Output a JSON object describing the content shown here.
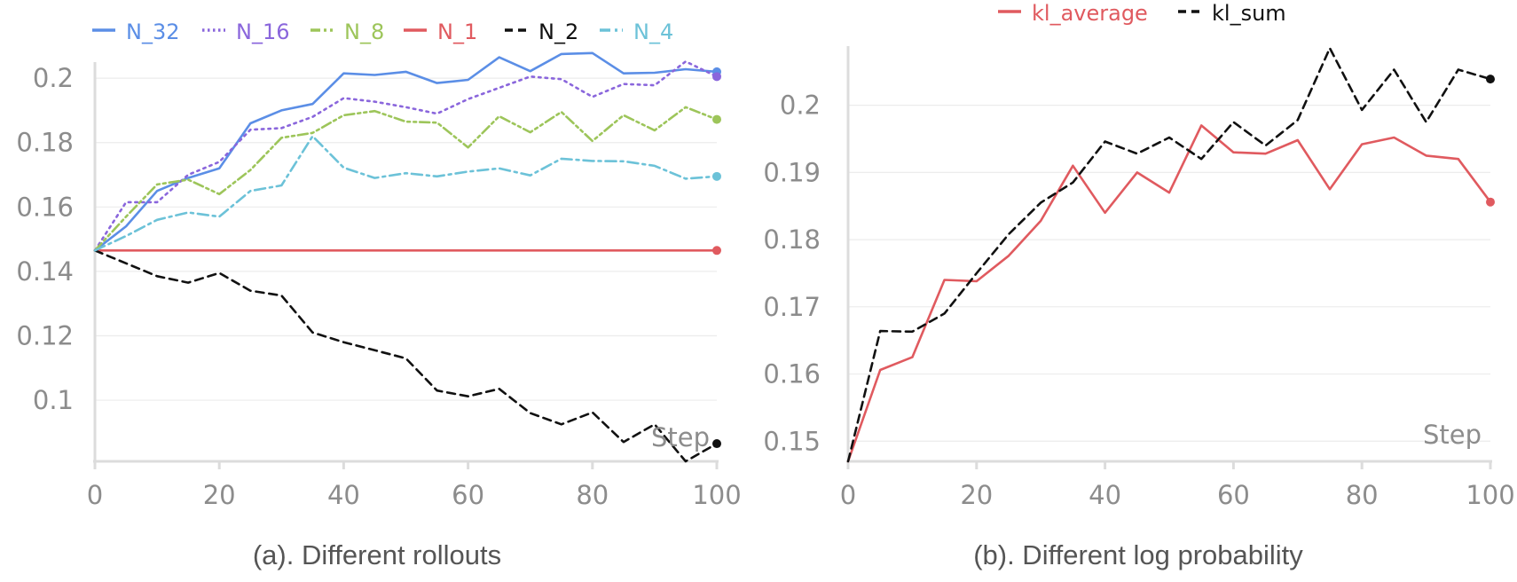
{
  "chart_data": [
    {
      "type": "line",
      "caption": "(a). Different rollouts",
      "xaxis_title": "Step",
      "xlim": [
        0,
        100
      ],
      "ylim": [
        0.081,
        0.205
      ],
      "x_ticks": [
        0,
        20,
        40,
        60,
        80,
        100
      ],
      "x_tick_labels": [
        "0",
        "20",
        "40",
        "60",
        "80",
        "100"
      ],
      "y_ticks": [
        0.1,
        0.12,
        0.14,
        0.16,
        0.18,
        0.2
      ],
      "y_tick_labels": [
        "0.1",
        "0.12",
        "0.14",
        "0.16",
        "0.18",
        "0.2"
      ],
      "grid": true,
      "legend_position": "top",
      "x": [
        0,
        5,
        10,
        15,
        20,
        25,
        30,
        35,
        40,
        45,
        50,
        55,
        60,
        65,
        70,
        75,
        80,
        85,
        90,
        95,
        100
      ],
      "series": [
        {
          "name": "N_32",
          "color": "#5b8ee6",
          "dash": "solid",
          "values": [
            0.1465,
            0.154,
            0.165,
            0.169,
            0.172,
            0.186,
            0.19,
            0.192,
            0.2015,
            0.201,
            0.202,
            0.1985,
            0.1995,
            0.2065,
            0.2022,
            0.2075,
            0.2078,
            0.2015,
            0.2017,
            0.2028,
            0.202
          ]
        },
        {
          "name": "N_16",
          "color": "#8a66dc",
          "dash": "dot",
          "values": [
            0.1465,
            0.1615,
            0.1615,
            0.17,
            0.174,
            0.184,
            0.1845,
            0.188,
            0.1938,
            0.1927,
            0.191,
            0.189,
            0.1935,
            0.197,
            0.2005,
            0.1997,
            0.1942,
            0.1982,
            0.1978,
            0.2052,
            0.2005
          ]
        },
        {
          "name": "N_8",
          "color": "#9dc55a",
          "dash": "dashdotdot",
          "values": [
            0.1465,
            0.157,
            0.167,
            0.1685,
            0.164,
            0.1715,
            0.1815,
            0.183,
            0.1885,
            0.1898,
            0.1865,
            0.1862,
            0.1785,
            0.1882,
            0.1832,
            0.1895,
            0.1805,
            0.1885,
            0.1838,
            0.191,
            0.1872
          ]
        },
        {
          "name": "N_1",
          "color": "#e05a5f",
          "dash": "solid",
          "values": [
            0.1465,
            0.1465,
            0.1465,
            0.1465,
            0.1465,
            0.1465,
            0.1465,
            0.1465,
            0.1465,
            0.1465,
            0.1465,
            0.1465,
            0.1465,
            0.1465,
            0.1465,
            0.1465,
            0.1465,
            0.1465,
            0.1465,
            0.1465,
            0.1465
          ]
        },
        {
          "name": "N_2",
          "color": "#111111",
          "dash": "dash",
          "values": [
            0.1465,
            0.1425,
            0.1385,
            0.1365,
            0.1395,
            0.134,
            0.1325,
            0.121,
            0.118,
            0.1155,
            0.113,
            0.103,
            0.1012,
            0.1035,
            0.096,
            0.0925,
            0.0962,
            0.087,
            0.0925,
            0.081,
            0.0865
          ]
        },
        {
          "name": "N_4",
          "color": "#6cc2d8",
          "dash": "dashdot",
          "values": [
            0.1465,
            0.151,
            0.156,
            0.1583,
            0.157,
            0.165,
            0.1667,
            0.182,
            0.1722,
            0.169,
            0.1705,
            0.1695,
            0.171,
            0.172,
            0.1698,
            0.175,
            0.1743,
            0.1742,
            0.1728,
            0.1688,
            0.1695
          ]
        }
      ]
    },
    {
      "type": "line",
      "caption": "(b). Different log probability",
      "xaxis_title": "Step",
      "xlim": [
        0,
        100
      ],
      "ylim": [
        0.147,
        0.2088
      ],
      "x_ticks": [
        0,
        20,
        40,
        60,
        80,
        100
      ],
      "x_tick_labels": [
        "0",
        "20",
        "40",
        "60",
        "80",
        "100"
      ],
      "y_ticks": [
        0.15,
        0.16,
        0.17,
        0.18,
        0.19,
        0.2
      ],
      "y_tick_labels": [
        "0.15",
        "0.16",
        "0.17",
        "0.18",
        "0.19",
        "0.2"
      ],
      "grid": true,
      "legend_position": "top",
      "x": [
        0,
        5,
        10,
        15,
        20,
        25,
        30,
        35,
        40,
        45,
        50,
        55,
        60,
        65,
        70,
        75,
        80,
        85,
        90,
        95,
        100
      ],
      "series": [
        {
          "name": "kl_average",
          "color": "#e05a5f",
          "dash": "solid",
          "values": [
            0.147,
            0.1606,
            0.1625,
            0.174,
            0.1738,
            0.1776,
            0.1828,
            0.191,
            0.184,
            0.19,
            0.187,
            0.197,
            0.193,
            0.1928,
            0.1948,
            0.1875,
            0.1942,
            0.1952,
            0.1925,
            0.192,
            0.1856
          ]
        },
        {
          "name": "kl_sum",
          "color": "#111111",
          "dash": "dash",
          "values": [
            0.147,
            0.1664,
            0.1663,
            0.169,
            0.175,
            0.1808,
            0.1855,
            0.1885,
            0.1946,
            0.1928,
            0.1952,
            0.192,
            0.1975,
            0.194,
            0.1978,
            0.2085,
            0.1993,
            0.2053,
            0.1975,
            0.2053,
            0.2039
          ]
        }
      ]
    }
  ]
}
